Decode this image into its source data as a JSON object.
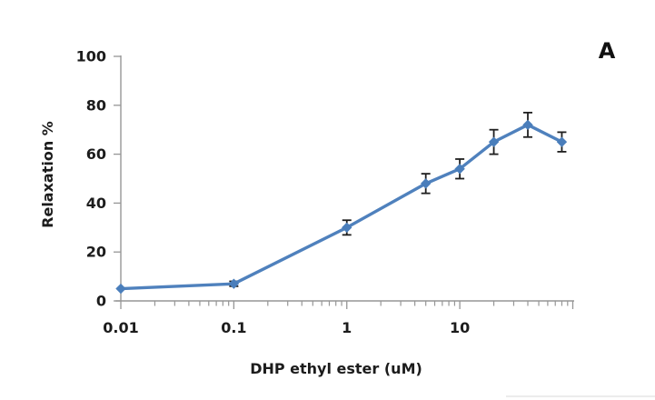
{
  "figure": {
    "panel_label": "A",
    "background": "#ffffff"
  },
  "chart_data": {
    "type": "line",
    "title": "",
    "xlabel": "DHP ethyl ester (uM)",
    "ylabel": "Relaxation %",
    "x_scale": "log",
    "xlim": [
      0.01,
      100
    ],
    "ylim": [
      0,
      100
    ],
    "x": [
      0.01,
      0.1,
      1,
      5,
      10,
      20,
      40,
      80
    ],
    "y": [
      5,
      7,
      30,
      48,
      54,
      65,
      72,
      65
    ],
    "y_err": [
      0,
      1,
      3,
      4,
      4,
      5,
      5,
      4
    ],
    "x_ticks": [
      0.01,
      0.1,
      1,
      10
    ],
    "x_tick_labels": [
      "0.01",
      "0.1",
      "1",
      "10"
    ],
    "x_minor_tick_decades": [
      0.01,
      0.1,
      1,
      10
    ],
    "x_major_tick_values": [
      0.01,
      0.1,
      1,
      10,
      100
    ],
    "y_ticks": [
      0,
      20,
      40,
      60,
      80,
      100
    ],
    "y_tick_labels": [
      "0",
      "20",
      "40",
      "60",
      "80",
      "100"
    ],
    "grid": false,
    "legend": false,
    "marker": "diamond",
    "colors": {
      "line": "#4f81bd",
      "marker": "#4a7ebb",
      "error_bar": "#1f1f1f",
      "axis": "#969696",
      "text": "#1c1c1c"
    }
  }
}
